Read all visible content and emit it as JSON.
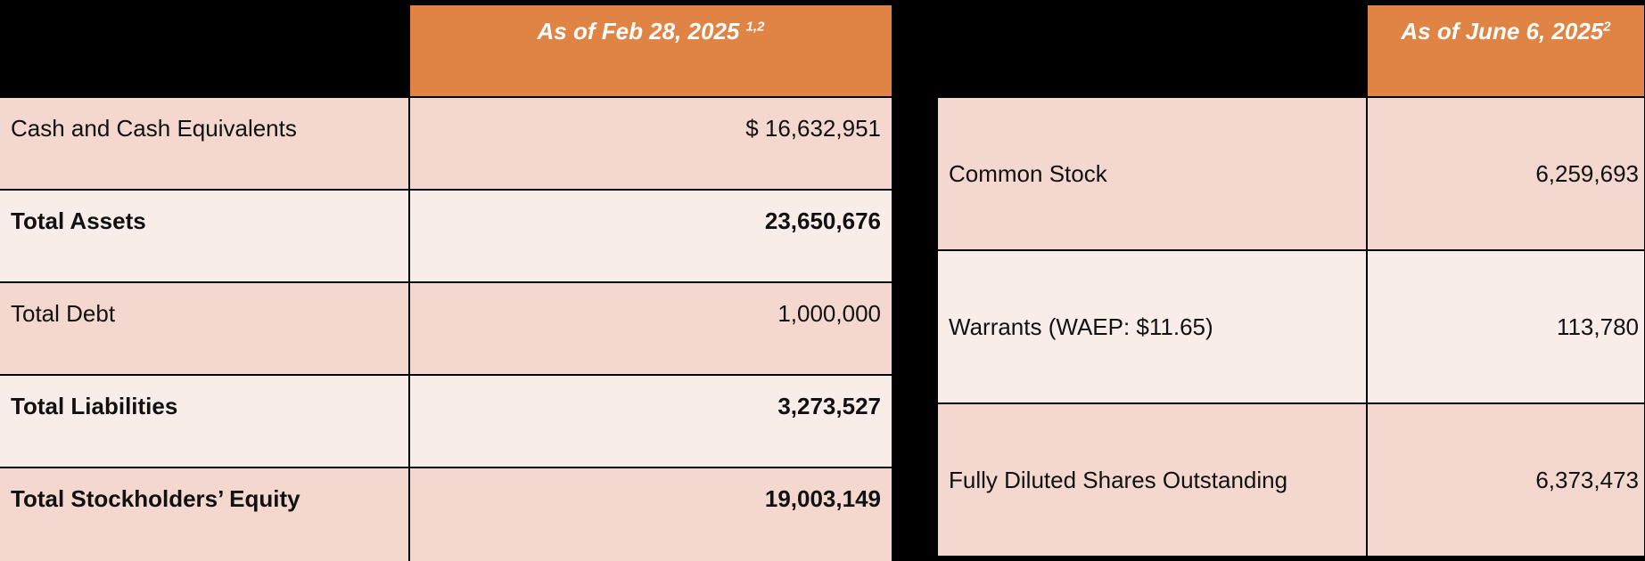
{
  "left_table": {
    "header": {
      "label": "As of Feb 28, 2025",
      "footnote": "1,2"
    },
    "rows": [
      {
        "label": "Cash and Cash Equivalents",
        "value": "$ 16,632,951",
        "bold": false
      },
      {
        "label": "Total Assets",
        "value": "23,650,676",
        "bold": true
      },
      {
        "label": "Total Debt",
        "value": "1,000,000",
        "bold": false
      },
      {
        "label": "Total Liabilities",
        "value": "3,273,527",
        "bold": true
      },
      {
        "label": "Total Stockholders’ Equity",
        "value": "19,003,149",
        "bold": true
      }
    ]
  },
  "right_table": {
    "header": {
      "label": "As of June 6, 2025",
      "footnote": "2"
    },
    "rows": [
      {
        "label": "Common Stock",
        "value": "6,259,693"
      },
      {
        "label": "Warrants (WAEP: $11.65)",
        "value": "113,780"
      },
      {
        "label": "Fully Diluted Shares Outstanding",
        "value": "6,373,473"
      }
    ]
  }
}
